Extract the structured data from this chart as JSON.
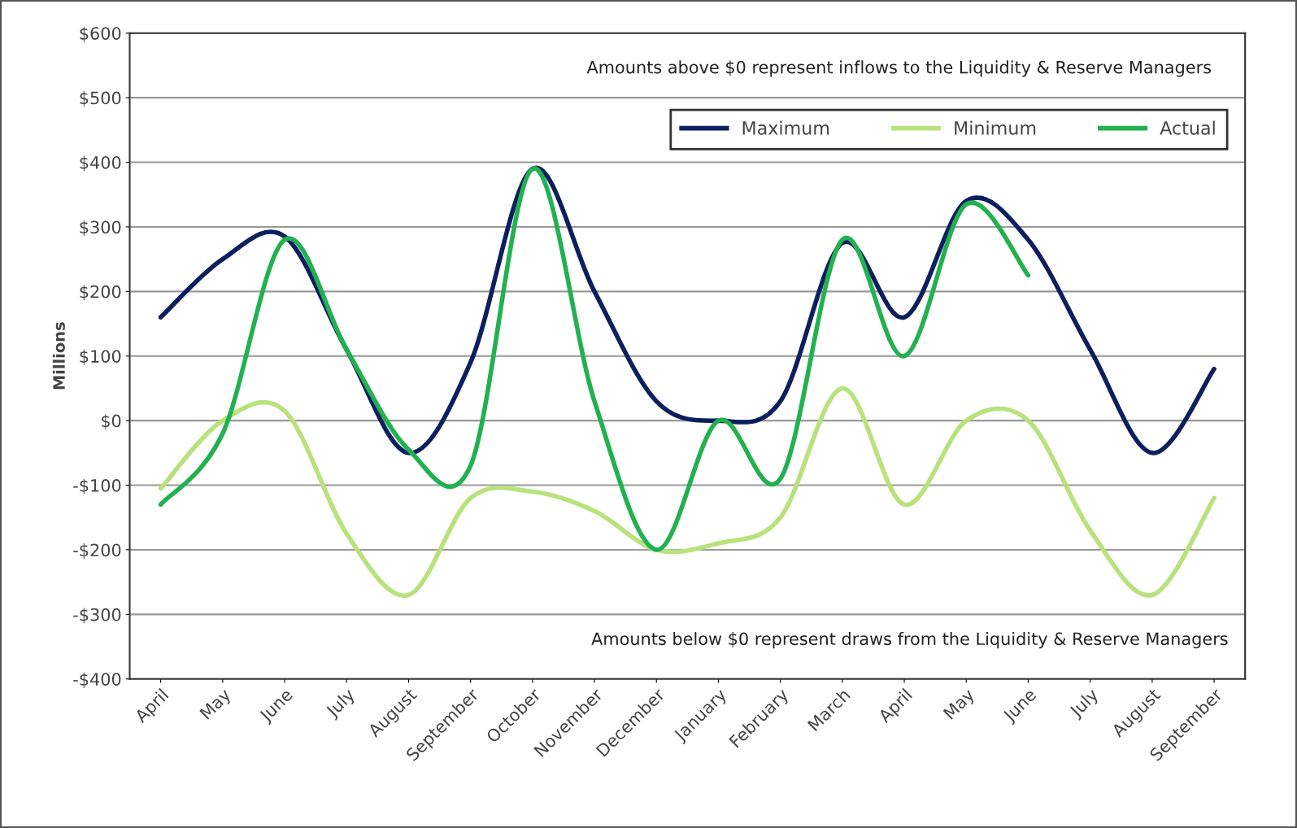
{
  "chart_data": {
    "type": "line",
    "ylabel": "Millions",
    "categories": [
      "April",
      "May",
      "June",
      "July",
      "August",
      "September",
      "October",
      "November",
      "December",
      "January",
      "February",
      "March",
      "April",
      "May",
      "June",
      "July",
      "August",
      "September"
    ],
    "series": [
      {
        "name": "Maximum",
        "color": "#0c1f5e",
        "values": [
          160,
          250,
          285,
          110,
          -50,
          90,
          390,
          200,
          30,
          0,
          30,
          275,
          160,
          340,
          280,
          110,
          -50,
          80
        ]
      },
      {
        "name": "Minimum",
        "color": "#b8e27c",
        "values": [
          -105,
          0,
          15,
          -175,
          -270,
          -120,
          -110,
          -140,
          -200,
          -190,
          -150,
          50,
          -130,
          0,
          0,
          -170,
          -270,
          -120
        ]
      },
      {
        "name": "Actual",
        "color": "#22b150",
        "values": [
          -130,
          -20,
          280,
          110,
          -45,
          -70,
          390,
          30,
          -200,
          0,
          -90,
          280,
          100,
          335,
          225,
          null,
          null,
          null
        ]
      }
    ],
    "ylim": [
      -400,
      600
    ],
    "yticks": [
      {
        "value": -400,
        "label": "-$400"
      },
      {
        "value": -300,
        "label": "-$300"
      },
      {
        "value": -200,
        "label": "-$200"
      },
      {
        "value": -100,
        "label": "-$100"
      },
      {
        "value": 0,
        "label": "$0"
      },
      {
        "value": 100,
        "label": "$100"
      },
      {
        "value": 200,
        "label": "$200"
      },
      {
        "value": 300,
        "label": "$300"
      },
      {
        "value": 400,
        "label": "$400"
      },
      {
        "value": 500,
        "label": "$500"
      },
      {
        "value": 600,
        "label": "$600"
      }
    ],
    "annotations": [
      "Amounts above $0 represent inflows to the Liquidity & Reserve Managers",
      "Amounts below $0 represent draws from the Liquidity & Reserve Managers"
    ],
    "grid": "y",
    "legend": "top right",
    "line_style": "solid",
    "marker": "none"
  }
}
